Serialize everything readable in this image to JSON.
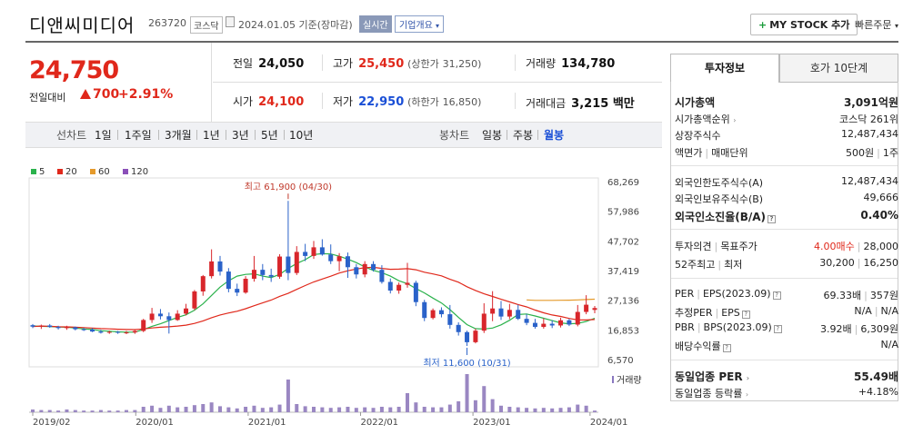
{
  "header": {
    "stock_name": "디앤씨미디어",
    "stock_code": "263720",
    "market": "코스닥",
    "date": "2024.01.05",
    "date_basis": "기준(장마감)",
    "live": "실시간",
    "overview": "기업개요",
    "mystock": "MY STOCK 추가",
    "quick_order": "빠른주문"
  },
  "price": {
    "current": "24,750",
    "diff_label": "전일대비",
    "diff": "700",
    "pct": "+2.91%"
  },
  "quote": {
    "prev_label": "전일",
    "prev": "24,050",
    "high_label": "고가",
    "high": "25,450",
    "upper_label": "(상한가",
    "upper": "31,250)",
    "volume_label": "거래량",
    "volume": "134,780",
    "open_label": "시가",
    "open": "24,100",
    "low_label": "저가",
    "low": "22,950",
    "lower_label": "(하한가",
    "lower": "16,850)",
    "amount_label": "거래대금",
    "amount": "3,215 백만"
  },
  "range": {
    "chart_label": "선차트",
    "ranges": [
      "1일",
      "1주일",
      "3개월",
      "1년",
      "3년",
      "5년",
      "10년"
    ],
    "candle_label": "봉차트",
    "candles": [
      "일봉",
      "주봉",
      "월봉"
    ],
    "selected_candle": "월봉"
  },
  "chart_data": {
    "type": "candlestick",
    "legend": [
      {
        "name": "5",
        "color": "#2bb24c"
      },
      {
        "name": "20",
        "color": "#e0281b"
      },
      {
        "name": "60",
        "color": "#e59a2b"
      },
      {
        "name": "120",
        "color": "#8a4fb8"
      }
    ],
    "y_ticks": [
      "68,269",
      "57,986",
      "47,702",
      "37,419",
      "27,136",
      "16,853",
      "6,570"
    ],
    "ylim": [
      6570,
      68269
    ],
    "x_ticks": [
      "2019/02",
      "2020/01",
      "2021/01",
      "2022/01",
      "2023/01",
      "2024/01"
    ],
    "high_annotation": "최고 61,900 (04/30)",
    "low_annotation": "최저 11,600 (10/31)",
    "volume_label": "거래량",
    "candles": [
      {
        "o": 18800,
        "h": 19200,
        "l": 17800,
        "c": 18300
      },
      {
        "o": 18300,
        "h": 19000,
        "l": 17500,
        "c": 18700
      },
      {
        "o": 18700,
        "h": 19200,
        "l": 17900,
        "c": 18200
      },
      {
        "o": 18200,
        "h": 18600,
        "l": 17300,
        "c": 17800
      },
      {
        "o": 17800,
        "h": 18600,
        "l": 17200,
        "c": 18100
      },
      {
        "o": 18100,
        "h": 18300,
        "l": 17000,
        "c": 17400
      },
      {
        "o": 17400,
        "h": 17900,
        "l": 16800,
        "c": 17300
      },
      {
        "o": 17300,
        "h": 17800,
        "l": 16400,
        "c": 16600
      },
      {
        "o": 16600,
        "h": 17200,
        "l": 15900,
        "c": 16200
      },
      {
        "o": 16200,
        "h": 16900,
        "l": 15800,
        "c": 16500
      },
      {
        "o": 16500,
        "h": 16800,
        "l": 15800,
        "c": 16200
      },
      {
        "o": 16200,
        "h": 16800,
        "l": 15700,
        "c": 16300
      },
      {
        "o": 16300,
        "h": 17100,
        "l": 15800,
        "c": 16800
      },
      {
        "o": 16800,
        "h": 21000,
        "l": 16400,
        "c": 20600
      },
      {
        "o": 20600,
        "h": 24800,
        "l": 19600,
        "c": 22800
      },
      {
        "o": 22800,
        "h": 24400,
        "l": 20800,
        "c": 21900
      },
      {
        "o": 21900,
        "h": 23200,
        "l": 15900,
        "c": 20600
      },
      {
        "o": 20600,
        "h": 24000,
        "l": 20300,
        "c": 22800
      },
      {
        "o": 22800,
        "h": 26200,
        "l": 22200,
        "c": 24600
      },
      {
        "o": 24600,
        "h": 31000,
        "l": 24000,
        "c": 30500
      },
      {
        "o": 30500,
        "h": 36200,
        "l": 29000,
        "c": 35800
      },
      {
        "o": 35800,
        "h": 45100,
        "l": 35000,
        "c": 40900
      },
      {
        "o": 40900,
        "h": 42800,
        "l": 36000,
        "c": 37400
      },
      {
        "o": 37400,
        "h": 38600,
        "l": 30200,
        "c": 31400
      },
      {
        "o": 31400,
        "h": 33200,
        "l": 28900,
        "c": 30100
      },
      {
        "o": 30100,
        "h": 35800,
        "l": 29700,
        "c": 34900
      },
      {
        "o": 34900,
        "h": 42800,
        "l": 33900,
        "c": 38000
      },
      {
        "o": 38000,
        "h": 40000,
        "l": 34400,
        "c": 36200
      },
      {
        "o": 36200,
        "h": 38400,
        "l": 33800,
        "c": 35600
      },
      {
        "o": 35600,
        "h": 43400,
        "l": 34900,
        "c": 42600
      },
      {
        "o": 42600,
        "h": 61900,
        "l": 34400,
        "c": 36900
      },
      {
        "o": 36900,
        "h": 46200,
        "l": 36200,
        "c": 44200
      },
      {
        "o": 44200,
        "h": 47000,
        "l": 41000,
        "c": 42800
      },
      {
        "o": 42800,
        "h": 48000,
        "l": 41800,
        "c": 45800
      },
      {
        "o": 45800,
        "h": 48600,
        "l": 42900,
        "c": 43300
      },
      {
        "o": 43300,
        "h": 46800,
        "l": 40000,
        "c": 41000
      },
      {
        "o": 41000,
        "h": 43800,
        "l": 37500,
        "c": 42700
      },
      {
        "o": 42700,
        "h": 44000,
        "l": 35200,
        "c": 38900
      },
      {
        "o": 38900,
        "h": 40000,
        "l": 35000,
        "c": 36400
      },
      {
        "o": 36400,
        "h": 41000,
        "l": 35400,
        "c": 40000
      },
      {
        "o": 40000,
        "h": 41000,
        "l": 37400,
        "c": 38000
      },
      {
        "o": 38000,
        "h": 39600,
        "l": 33200,
        "c": 33800
      },
      {
        "o": 33800,
        "h": 35000,
        "l": 29800,
        "c": 30800
      },
      {
        "o": 30800,
        "h": 33600,
        "l": 29700,
        "c": 32800
      },
      {
        "o": 32800,
        "h": 40400,
        "l": 31800,
        "c": 33500
      },
      {
        "o": 33500,
        "h": 34200,
        "l": 25400,
        "c": 26800
      },
      {
        "o": 26800,
        "h": 27600,
        "l": 20200,
        "c": 21300
      },
      {
        "o": 21300,
        "h": 24600,
        "l": 20800,
        "c": 24000
      },
      {
        "o": 24000,
        "h": 25000,
        "l": 21500,
        "c": 22600
      },
      {
        "o": 22600,
        "h": 25800,
        "l": 17600,
        "c": 18900
      },
      {
        "o": 18900,
        "h": 19800,
        "l": 15200,
        "c": 16400
      },
      {
        "o": 16400,
        "h": 16900,
        "l": 11600,
        "c": 12900
      },
      {
        "o": 12900,
        "h": 17600,
        "l": 12500,
        "c": 16900
      },
      {
        "o": 16900,
        "h": 26400,
        "l": 16100,
        "c": 22800
      },
      {
        "o": 22800,
        "h": 30600,
        "l": 20200,
        "c": 24600
      },
      {
        "o": 24600,
        "h": 27200,
        "l": 20600,
        "c": 21800
      },
      {
        "o": 21800,
        "h": 26200,
        "l": 20900,
        "c": 24100
      },
      {
        "o": 24100,
        "h": 25900,
        "l": 20600,
        "c": 21000
      },
      {
        "o": 21000,
        "h": 22700,
        "l": 18800,
        "c": 19600
      },
      {
        "o": 19600,
        "h": 21000,
        "l": 17600,
        "c": 18200
      },
      {
        "o": 18200,
        "h": 21200,
        "l": 17600,
        "c": 19300
      },
      {
        "o": 19300,
        "h": 20500,
        "l": 17800,
        "c": 18700
      },
      {
        "o": 18700,
        "h": 21400,
        "l": 18000,
        "c": 20500
      },
      {
        "o": 20500,
        "h": 21000,
        "l": 18500,
        "c": 19000
      },
      {
        "o": 19000,
        "h": 25800,
        "l": 18400,
        "c": 23400
      },
      {
        "o": 23400,
        "h": 29200,
        "l": 22600,
        "c": 25900
      },
      {
        "o": 24100,
        "h": 25450,
        "l": 22950,
        "c": 24750
      }
    ],
    "volumes": [
      5,
      4,
      4,
      3,
      5,
      4,
      3,
      3,
      4,
      3,
      3,
      4,
      4,
      10,
      12,
      8,
      12,
      9,
      10,
      13,
      15,
      18,
      11,
      9,
      7,
      10,
      12,
      8,
      9,
      14,
      60,
      15,
      11,
      10,
      9,
      8,
      9,
      10,
      8,
      9,
      8,
      10,
      9,
      10,
      35,
      18,
      10,
      9,
      9,
      14,
      20,
      70,
      22,
      48,
      24,
      12,
      10,
      9,
      8,
      7,
      8,
      7,
      8,
      9,
      14,
      12,
      3
    ],
    "ma5": [
      18500,
      18400,
      18300,
      18200,
      18100,
      17800,
      17500,
      17300,
      16900,
      16700,
      16500,
      16400,
      16400,
      17300,
      18400,
      19300,
      20400,
      21500,
      22400,
      24000,
      26200,
      29100,
      32000,
      34200,
      35800,
      36400,
      36600,
      35800,
      35300,
      36400,
      38500,
      40200,
      41500,
      43300,
      43600,
      43500,
      42700,
      41700,
      40500,
      39000,
      37800,
      37000,
      35800,
      34200,
      33200,
      31500,
      30000,
      28200,
      26500,
      24200,
      21500,
      19000,
      17600,
      17500,
      17800,
      18900,
      20500,
      22500,
      22700,
      22000,
      21200,
      20400,
      19600,
      19300,
      19400,
      20100,
      21200
    ]
  },
  "tabs": {
    "info": "투자정보",
    "quote10": "호가 10단계"
  },
  "info": {
    "mcap_label": "시가총액",
    "mcap": "3,091억원",
    "mcap_rank_label": "시가총액순위",
    "mcap_rank": "코스닥 261위",
    "shares_label": "상장주식수",
    "shares": "12,487,434",
    "face_label": "액면가",
    "trade_unit_label": "매매단위",
    "face": "500원",
    "trade_unit": "1주",
    "foreign_limit_label": "외국인한도주식수(A)",
    "foreign_limit": "12,487,434",
    "foreign_hold_label": "외국인보유주식수(B)",
    "foreign_hold": "49,666",
    "foreign_ratio_label": "외국인소진율(B/A)",
    "foreign_ratio": "0.40%",
    "opinion_label": "투자의견",
    "target_label": "목표주가",
    "opinion": "4.00매수",
    "target": "28,000",
    "w52_high_label": "52주최고",
    "w52_low_label": "최저",
    "w52_high": "30,200",
    "w52_low": "16,250",
    "per_label": "PER",
    "eps_label": "EPS(2023.09)",
    "per": "69.33배",
    "eps": "357원",
    "est_per_label": "추정PER",
    "est_eps_label": "EPS",
    "est_per": "N/A",
    "est_eps": "N/A",
    "pbr_label": "PBR",
    "bps_label": "BPS(2023.09)",
    "pbr": "3.92배",
    "bps": "6,309원",
    "div_label": "배당수익률",
    "div": "N/A",
    "sector_per_label": "동일업종 PER",
    "sector_per": "55.49배",
    "sector_chg_label": "동일업종 등락률",
    "sector_chg": "+4.18%"
  }
}
